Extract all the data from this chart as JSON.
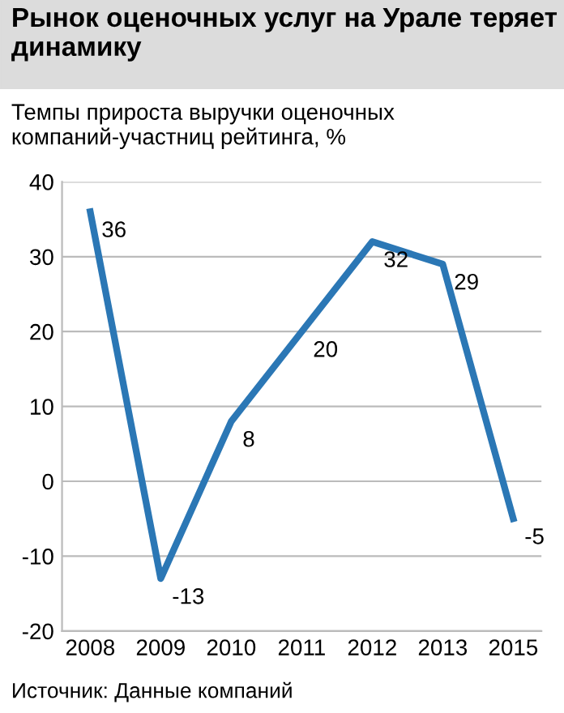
{
  "chart_data": {
    "type": "line",
    "title": "Рынок оценочных услуг на Урале теряет динамику",
    "subtitle": "Темпы прироста выручки оценочных компаний-участниц рейтинга, %",
    "categories": [
      "2008",
      "2009",
      "2010",
      "2011",
      "2012",
      "2013",
      "2015"
    ],
    "series": [
      {
        "color": "#2b77b5",
        "values": [
          36,
          -13,
          8,
          20,
          32,
          29,
          -5
        ]
      }
    ],
    "ylim": [
      -20,
      40
    ],
    "yticks": [
      -20,
      -10,
      0,
      10,
      20,
      30,
      40
    ],
    "grid": "y",
    "data_labels": true,
    "marker": "none",
    "line_style": "solid",
    "annotations": [
      "Источник: Данные компаний"
    ]
  }
}
